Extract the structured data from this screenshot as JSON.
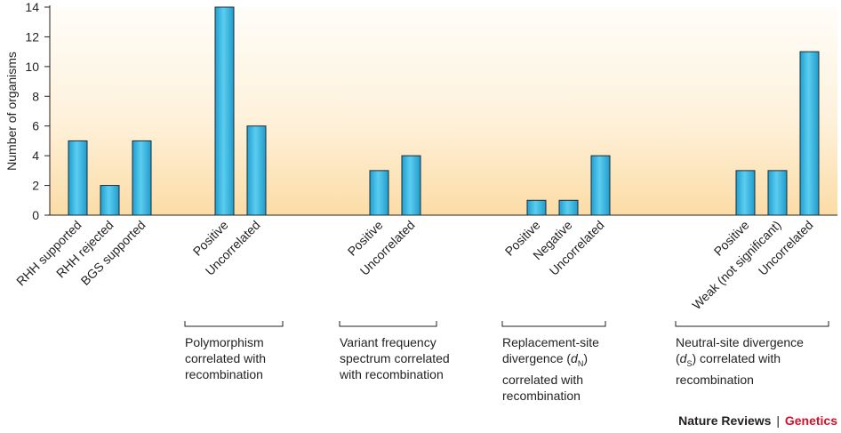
{
  "chart_data": {
    "type": "bar",
    "ylabel": "Number of organisms",
    "ylim": [
      0,
      14
    ],
    "yticks": [
      0,
      2,
      4,
      6,
      8,
      10,
      12,
      14
    ],
    "grid": false,
    "colors": {
      "bar": "#3bb8e0",
      "bar_edge": "#1d2a36",
      "bg_top": "#fffdf9",
      "bg_bottom": "#fbdca6"
    },
    "groups": [
      {
        "label_lines": [],
        "bars": [
          {
            "category": "RHH supported",
            "value": 5
          },
          {
            "category": "RHH rejected",
            "value": 2
          },
          {
            "category": "BGS supported",
            "value": 5
          }
        ]
      },
      {
        "label_lines": [
          "Polymorphism",
          "correlated with",
          "recombination"
        ],
        "bars": [
          {
            "category": "Positive",
            "value": 14
          },
          {
            "category": "Uncorrelated",
            "value": 6
          }
        ]
      },
      {
        "label_lines": [
          "Variant frequency",
          "spectrum correlated",
          "with recombination"
        ],
        "bars": [
          {
            "category": "Positive",
            "value": 3
          },
          {
            "category": "Uncorrelated",
            "value": 4
          }
        ]
      },
      {
        "label_lines": [
          "Replacement-site",
          "divergence (dN)",
          "correlated with",
          "recombination"
        ],
        "bars": [
          {
            "category": "Positive",
            "value": 1
          },
          {
            "category": "Negative",
            "value": 1
          },
          {
            "category": "Uncorrelated",
            "value": 4
          }
        ]
      },
      {
        "label_lines": [
          "Neutral-site divergence",
          "(dS) correlated with",
          "recombination"
        ],
        "bars": [
          {
            "category": "Positive",
            "value": 3
          },
          {
            "category": "Weak (not significant)",
            "value": 3
          },
          {
            "category": "Uncorrelated",
            "value": 11
          }
        ]
      }
    ]
  },
  "footer": {
    "brand": "Nature Reviews",
    "separator": "|",
    "journal": "Genetics"
  }
}
